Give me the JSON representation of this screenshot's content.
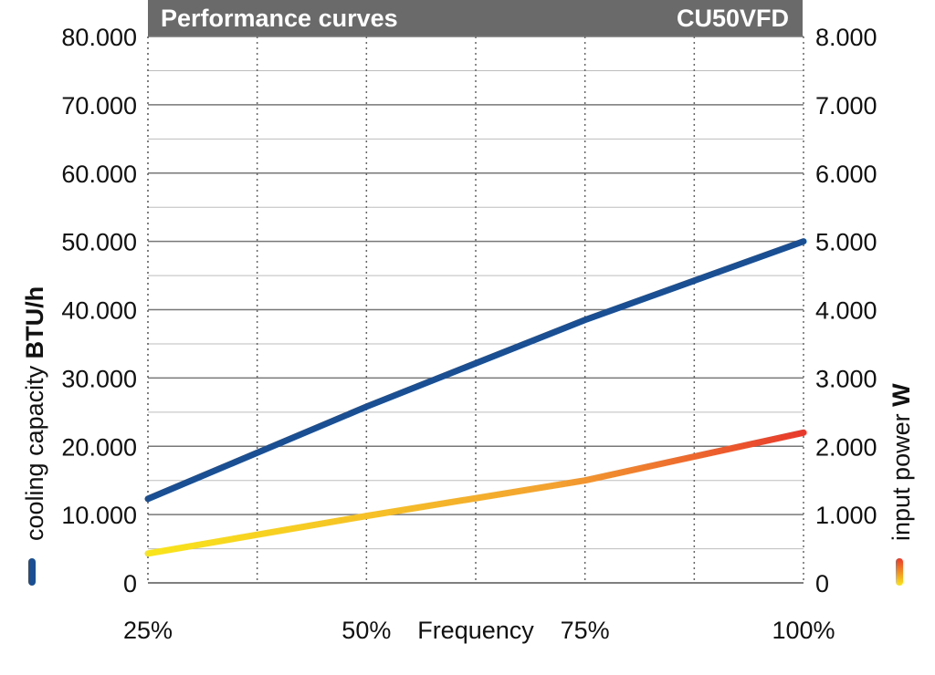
{
  "header": {
    "title": "Performance curves",
    "model": "CU50VFD"
  },
  "chart_data": {
    "type": "line",
    "xlabel": "Frequency",
    "x_ticks": [
      "25%",
      "50%",
      "75%",
      "100%"
    ],
    "x_values": [
      25,
      50,
      75,
      100
    ],
    "xlim": [
      25,
      100
    ],
    "ylabel_left": {
      "text": "cooling capacity ",
      "unit": "BTU/h"
    },
    "ylabel_right": {
      "text": "input power ",
      "unit": "W"
    },
    "y_left_ticks": [
      "0",
      "10.000",
      "20.000",
      "30.000",
      "40.000",
      "50.000",
      "60.000",
      "70.000",
      "80.000"
    ],
    "y_right_ticks": [
      "0",
      "1.000",
      "2.000",
      "3.000",
      "4.000",
      "5.000",
      "6.000",
      "7.000",
      "8.000"
    ],
    "ylim_left": [
      0,
      80000
    ],
    "ylim_right": [
      0,
      8000
    ],
    "grid": true,
    "series": [
      {
        "axis": "left",
        "color": "#1b4f93",
        "x": [
          25,
          50,
          75,
          100
        ],
        "values": [
          12300,
          25800,
          38500,
          50000
        ]
      },
      {
        "axis": "right",
        "colors": [
          "#f9e51b",
          "#f3a230",
          "#e8392c"
        ],
        "x": [
          25,
          50,
          75,
          100
        ],
        "values": [
          430,
          980,
          1500,
          2200
        ]
      }
    ]
  }
}
